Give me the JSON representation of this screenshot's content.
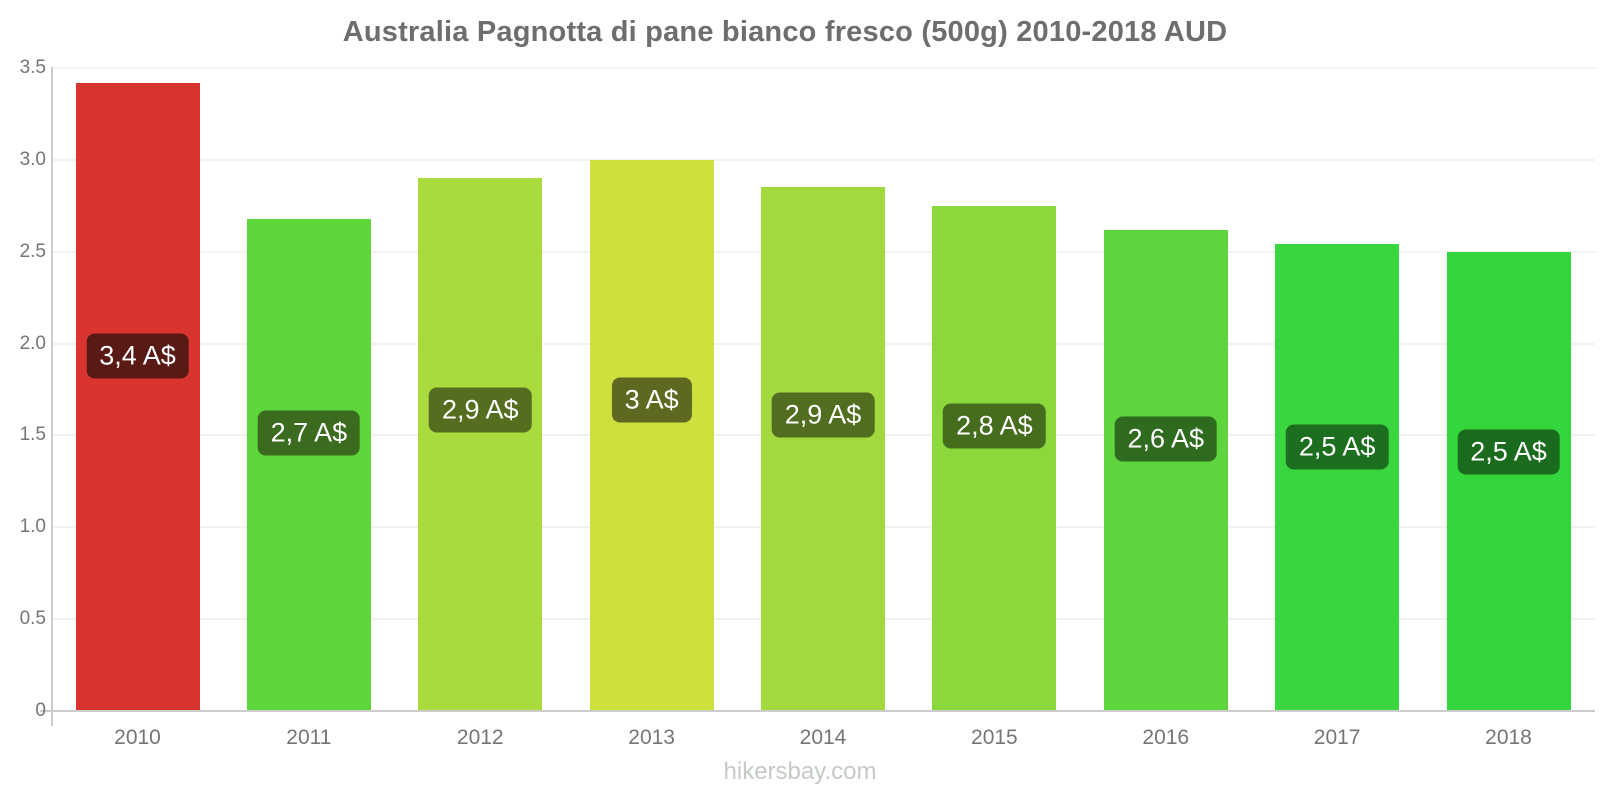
{
  "title": "Australia Pagnotta di pane bianco fresco (500g) 2010-2018 AUD",
  "watermark": "hikersbay.com",
  "chart_data": {
    "type": "bar",
    "title": "Australia Pagnotta di pane bianco fresco (500g) 2010-2018 AUD",
    "xlabel": "",
    "ylabel": "",
    "unit": "AUD",
    "categories": [
      "2010",
      "2011",
      "2012",
      "2013",
      "2014",
      "2015",
      "2016",
      "2017",
      "2018"
    ],
    "values": [
      3.42,
      2.68,
      2.9,
      3.0,
      2.85,
      2.75,
      2.62,
      2.54,
      2.5
    ],
    "bar_labels": [
      "3,4 A$",
      "2,7 A$",
      "2,9 A$",
      "3 A$",
      "2,9 A$",
      "2,8 A$",
      "2,6 A$",
      "2,5 A$",
      "2,5 A$"
    ],
    "bar_colors": [
      "#d9342f",
      "#5fd53c",
      "#a9da3e",
      "#cde03e",
      "#a2d93e",
      "#8bd83d",
      "#5ed53c",
      "#39d640",
      "#33d63c"
    ],
    "label_bg_colors": [
      "#591a15",
      "#3a6b1e",
      "#556d1f",
      "#5f6820",
      "#516d1f",
      "#466c1e",
      "#2f6b1e",
      "#1d6f20",
      "#1a6b1e"
    ],
    "ylim": [
      0,
      3.5
    ],
    "y_tick_values": [
      0,
      0.5,
      1.0,
      1.5,
      2.0,
      2.5,
      3.0,
      3.5
    ],
    "y_tick_labels": [
      "0",
      "0.5",
      "1.0",
      "1.5",
      "2.0",
      "2.5",
      "3.0",
      "3.5"
    ],
    "grid": true,
    "legend": false
  },
  "style": {
    "title_color": "#6e6e6e",
    "axis_color": "#cccccc",
    "grid_color": "#f2f2f2",
    "tick_label_color": "#757575",
    "value_label_text_color": "#ffffff",
    "watermark_color": "#c3cbc3"
  }
}
